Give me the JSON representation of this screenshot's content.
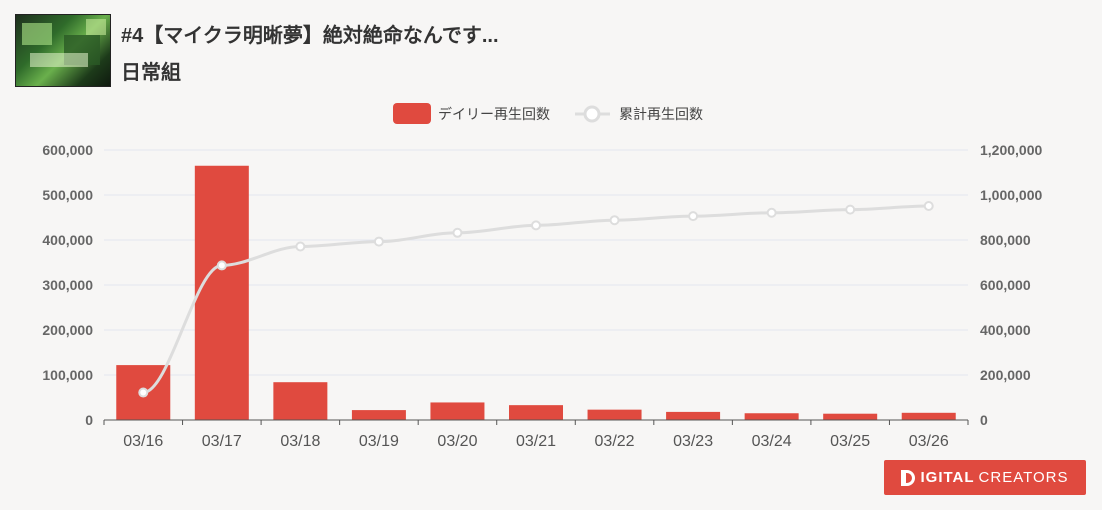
{
  "header": {
    "title": "#4【マイクラ明晰夢】絶対絶命なんです...",
    "subtitle": "日常組"
  },
  "brand": {
    "bold": "IGITAL",
    "thin": "CREATORS",
    "color": "#e04a3f"
  },
  "chart_data": {
    "type": "bar",
    "categories": [
      "03/16",
      "03/17",
      "03/18",
      "03/19",
      "03/20",
      "03/21",
      "03/22",
      "03/23",
      "03/24",
      "03/25",
      "03/26"
    ],
    "series": [
      {
        "name": "デイリー再生回数",
        "type": "bar",
        "axis": "left",
        "color": "#e04a3f",
        "values": [
          122000,
          565000,
          84000,
          22000,
          39000,
          33000,
          23000,
          18000,
          15000,
          14000,
          16000
        ]
      },
      {
        "name": "累計再生回数",
        "type": "line",
        "axis": "right",
        "color": "#dddddd",
        "values": [
          122000,
          687000,
          771000,
          793000,
          832000,
          865000,
          888000,
          906000,
          921000,
          935000,
          951000
        ]
      }
    ],
    "y_left": {
      "min": 0,
      "max": 600000,
      "ticks": [
        0,
        100000,
        200000,
        300000,
        400000,
        500000,
        600000
      ],
      "tick_labels": [
        "0",
        "100,000",
        "200,000",
        "300,000",
        "400,000",
        "500,000",
        "600,000"
      ]
    },
    "y_right": {
      "min": 0,
      "max": 1200000,
      "ticks": [
        0,
        200000,
        400000,
        600000,
        800000,
        1000000,
        1200000
      ],
      "tick_labels": [
        "0",
        "200,000",
        "400,000",
        "600,000",
        "800,000",
        "1,000,000",
        "1,200,000"
      ]
    },
    "legend_position": "top-center",
    "grid": true
  }
}
